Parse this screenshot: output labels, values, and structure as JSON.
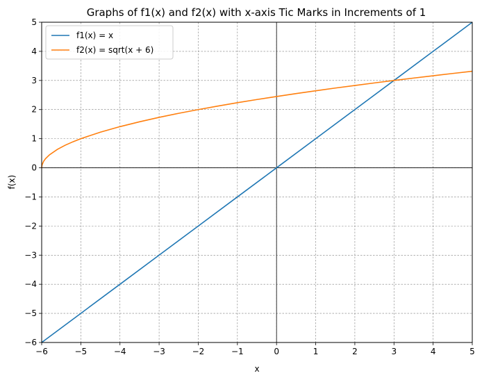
{
  "chart_data": {
    "type": "line",
    "title": "Graphs of f1(x) and f2(x) with x-axis Tic Marks in Increments of 1",
    "xlabel": "x",
    "ylabel": "f(x)",
    "xlim": [
      -6,
      5
    ],
    "ylim": [
      -6,
      5
    ],
    "xticks": [
      -6,
      -5,
      -4,
      -3,
      -2,
      -1,
      0,
      1,
      2,
      3,
      4,
      5
    ],
    "yticks": [
      -6,
      -5,
      -4,
      -3,
      -2,
      -1,
      0,
      1,
      2,
      3,
      4,
      5
    ],
    "xtick_labels": [
      "−6",
      "−5",
      "−4",
      "−3",
      "−2",
      "−1",
      "0",
      "1",
      "2",
      "3",
      "4",
      "5"
    ],
    "ytick_labels": [
      "−6",
      "−5",
      "−4",
      "−3",
      "−2",
      "−1",
      "0",
      "1",
      "2",
      "3",
      "4",
      "5"
    ],
    "grid": true,
    "grid_style": "dashed",
    "legend_position": "top-left",
    "series": [
      {
        "name": "f1(x) = x",
        "color": "#1f77b4",
        "x": [
          -6,
          -5,
          -4,
          -3,
          -2,
          -1,
          0,
          1,
          2,
          3,
          4,
          5
        ],
        "y": [
          -6,
          -5,
          -4,
          -3,
          -2,
          -1,
          0,
          1,
          2,
          3,
          4,
          5
        ]
      },
      {
        "name": "f2(x) = sqrt(x + 6)",
        "color": "#ff7f0e",
        "x": [
          -6,
          -5.99,
          -5.95,
          -5.9,
          -5.8,
          -5.6,
          -5.4,
          -5.2,
          -5,
          -4.5,
          -4,
          -3.5,
          -3,
          -2.5,
          -2,
          -1.5,
          -1,
          -0.5,
          0,
          0.5,
          1,
          1.5,
          2,
          2.5,
          3,
          3.5,
          4,
          4.5,
          5
        ],
        "y": [
          0,
          0.1,
          0.224,
          0.316,
          0.447,
          0.632,
          0.775,
          0.894,
          1,
          1.225,
          1.414,
          1.581,
          1.732,
          1.871,
          2,
          2.121,
          2.236,
          2.345,
          2.449,
          2.55,
          2.646,
          2.739,
          2.828,
          2.915,
          3,
          3.082,
          3.162,
          3.24,
          3.317
        ]
      }
    ]
  }
}
